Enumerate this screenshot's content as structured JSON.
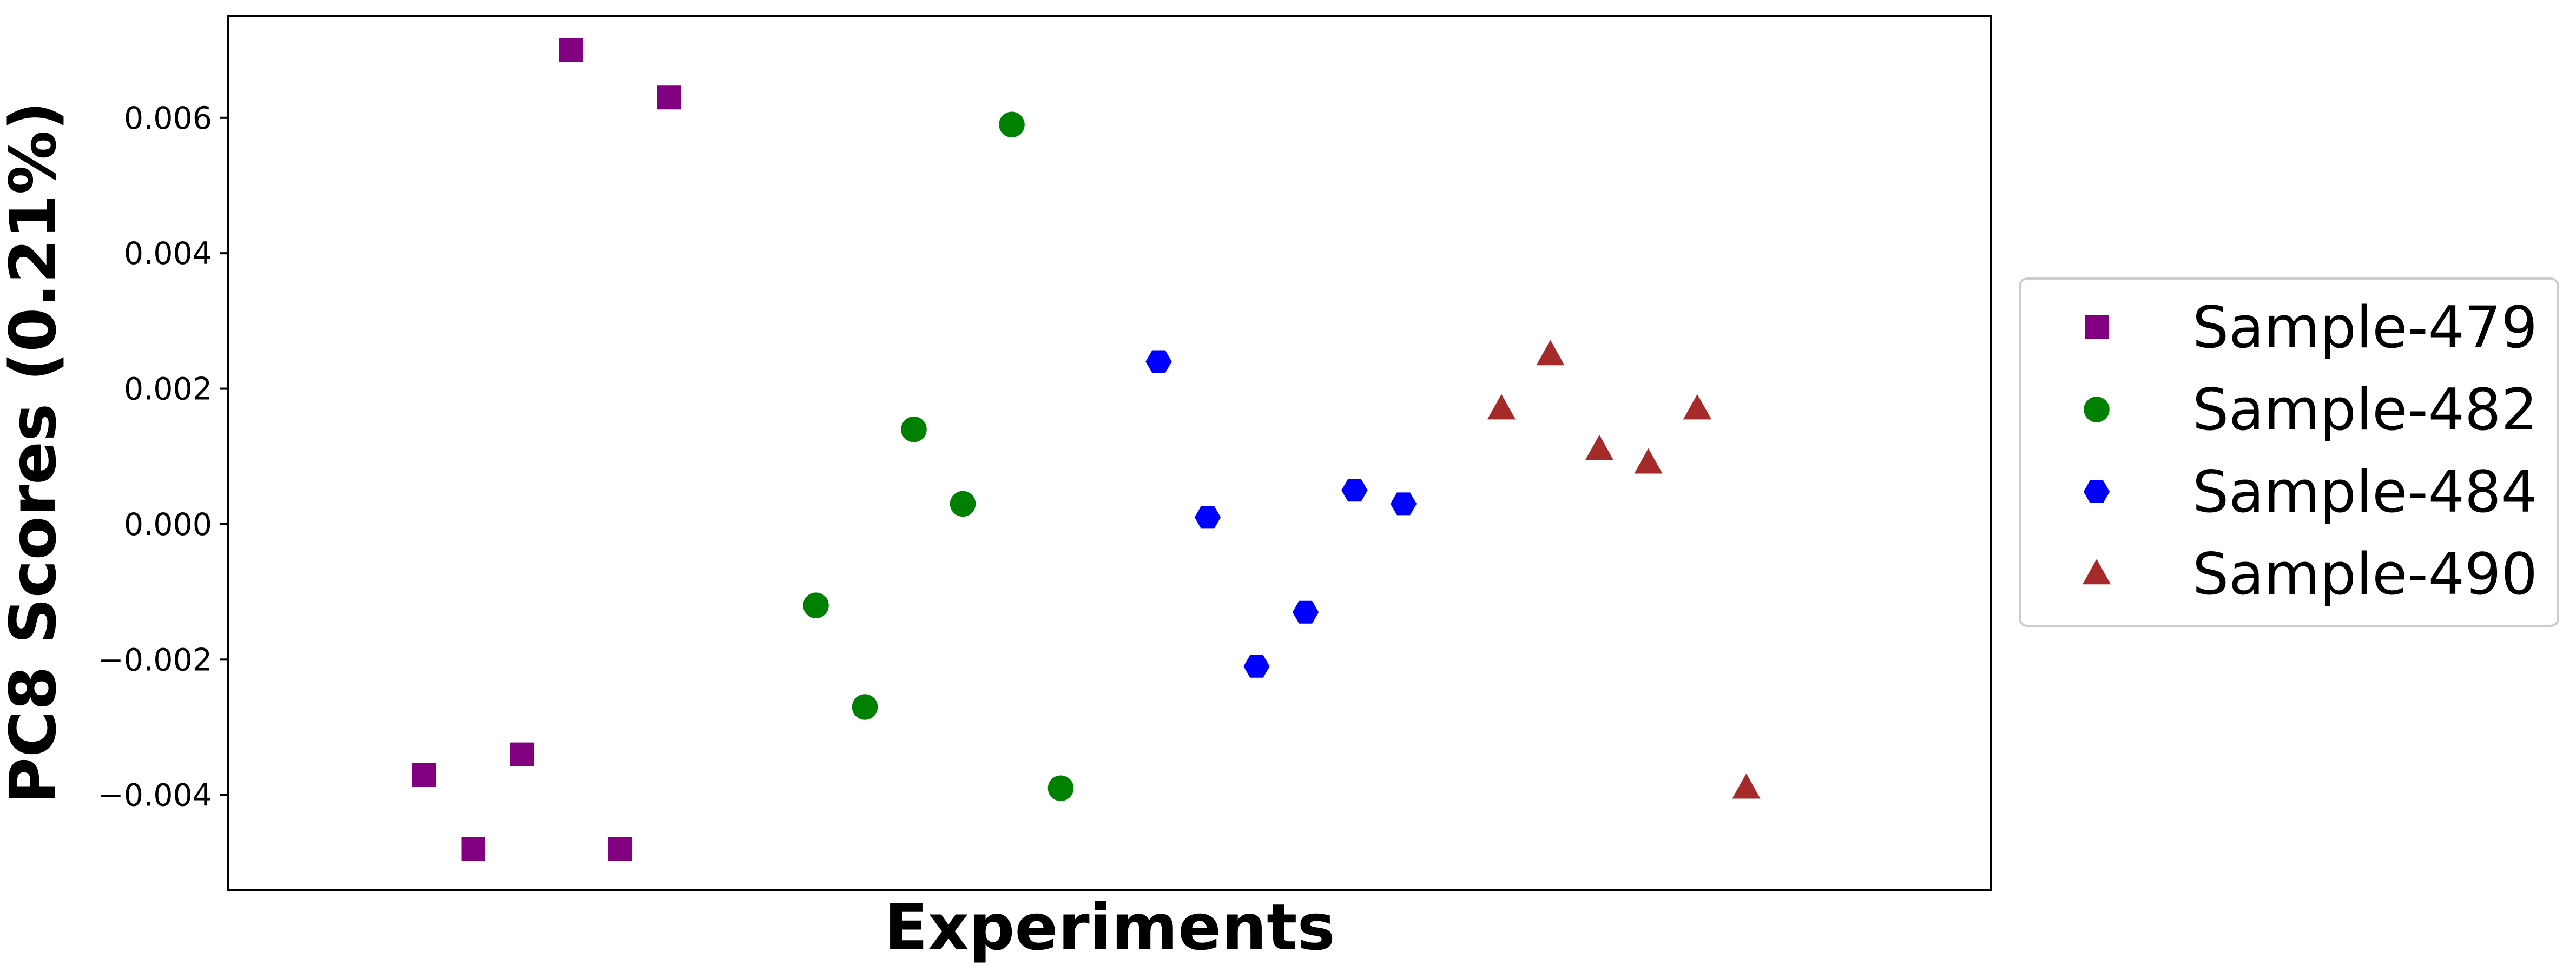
{
  "chart_data": {
    "type": "scatter",
    "xlabel": "Experiments",
    "ylabel": "PC8 Scores (0.21%)",
    "ylim": [
      -0.0054,
      0.0075
    ],
    "xlim": [
      0,
      36
    ],
    "y_ticks": [
      -0.004,
      -0.002,
      0.0,
      0.002,
      0.004,
      0.006
    ],
    "y_tick_labels": [
      "−0.004",
      "−0.002",
      "0.000",
      "0.002",
      "0.004",
      "0.006"
    ],
    "x_ticks_shown": false,
    "grid": false,
    "legend_position": "right, outside plot",
    "series": [
      {
        "name": "Sample-479",
        "marker": "square",
        "color": "#800080",
        "x": [
          4,
          5,
          6,
          7,
          8,
          9
        ],
        "y": [
          -0.0037,
          -0.0048,
          -0.0034,
          0.007,
          -0.0048,
          0.0063
        ]
      },
      {
        "name": "Sample-482",
        "marker": "circle",
        "color": "#008000",
        "x": [
          12,
          13,
          14,
          15,
          16,
          17
        ],
        "y": [
          -0.0012,
          -0.0027,
          0.0014,
          0.0003,
          0.0059,
          -0.0039
        ]
      },
      {
        "name": "Sample-484",
        "marker": "hexagon",
        "color": "#0000ff",
        "x": [
          19,
          20,
          21,
          22,
          23,
          24
        ],
        "y": [
          0.0024,
          0.0001,
          -0.0021,
          -0.0013,
          0.0005,
          0.0003
        ]
      },
      {
        "name": "Sample-490",
        "marker": "triangle",
        "color": "#a52a2a",
        "x": [
          26,
          27,
          28,
          29,
          30,
          31
        ],
        "y": [
          0.0017,
          0.0025,
          0.0011,
          0.0009,
          0.0017,
          -0.0039
        ]
      }
    ]
  }
}
